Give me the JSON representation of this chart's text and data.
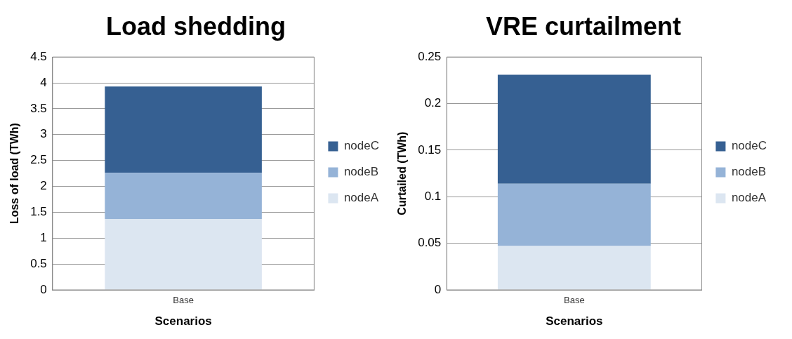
{
  "chart_data": [
    {
      "type": "bar",
      "title": "Load shedding",
      "xlabel": "Scenarios",
      "ylabel": "Loss of load (TWh)",
      "categories": [
        "Base"
      ],
      "stacked": true,
      "series": [
        {
          "name": "nodeA",
          "color": "#dce6f1",
          "values": [
            1.37
          ]
        },
        {
          "name": "nodeB",
          "color": "#95b3d7",
          "values": [
            0.89
          ]
        },
        {
          "name": "nodeC",
          "color": "#366092",
          "values": [
            1.67
          ]
        }
      ],
      "ylim": [
        0,
        4.5
      ],
      "yticks": [
        0,
        0.5,
        1,
        1.5,
        2,
        2.5,
        3,
        3.5,
        4,
        4.5
      ],
      "grid": "y",
      "legend": "right"
    },
    {
      "type": "bar",
      "title": "VRE curtailment",
      "xlabel": "Scenarios",
      "ylabel": "Curtailed (TWh)",
      "categories": [
        "Base"
      ],
      "stacked": true,
      "series": [
        {
          "name": "nodeA",
          "color": "#dce6f1",
          "values": [
            0.047
          ]
        },
        {
          "name": "nodeB",
          "color": "#95b3d7",
          "values": [
            0.067
          ]
        },
        {
          "name": "nodeC",
          "color": "#366092",
          "values": [
            0.117
          ]
        }
      ],
      "ylim": [
        0,
        0.25
      ],
      "yticks": [
        0,
        0.05,
        0.1,
        0.15,
        0.2,
        0.25
      ],
      "grid": "y",
      "legend": "right"
    }
  ]
}
